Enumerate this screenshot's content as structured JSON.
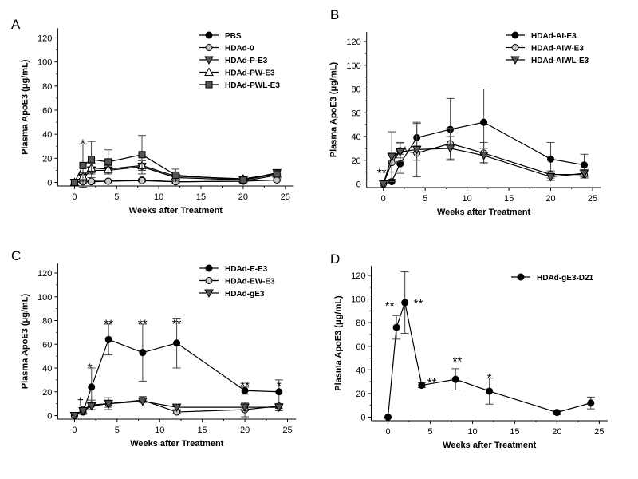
{
  "chart_data": [
    {
      "panel": "A",
      "type": "line",
      "xlabel": "Weeks after Treatment",
      "ylabel": "Plasma ApoE3 (μg/mL)",
      "xlim": [
        -1,
        26
      ],
      "ylim": [
        -3,
        128
      ],
      "xticks": [
        0,
        5,
        10,
        15,
        20,
        25
      ],
      "yticks": [
        0,
        20,
        40,
        60,
        80,
        100,
        120
      ],
      "legend_position": "top-right",
      "series": [
        {
          "name": "PBS",
          "marker": "circle",
          "fill": "#000000",
          "points": [
            [
              0,
              0,
              0
            ],
            [
              1,
              1,
              1
            ],
            [
              2,
              0.5,
              1
            ],
            [
              4,
              1,
              1
            ],
            [
              8,
              2,
              1
            ],
            [
              12,
              0.5,
              1
            ],
            [
              20,
              1,
              1
            ],
            [
              24,
              6,
              1
            ]
          ]
        },
        {
          "name": "HDAd-0",
          "marker": "circle",
          "fill": "#c8c8c8",
          "points": [
            [
              0,
              0,
              0
            ],
            [
              1,
              0.5,
              1
            ],
            [
              2,
              1,
              1
            ],
            [
              4,
              1,
              1
            ],
            [
              8,
              1.5,
              1
            ],
            [
              12,
              0.5,
              1
            ],
            [
              20,
              1,
              1
            ],
            [
              24,
              2,
              1
            ]
          ]
        },
        {
          "name": "HDAd-P-E3",
          "marker": "triangle-down",
          "fill": "#555555",
          "points": [
            [
              0,
              0,
              0
            ],
            [
              1,
              4,
              3
            ],
            [
              2,
              10,
              3
            ],
            [
              4,
              10,
              3
            ],
            [
              8,
              13,
              3
            ],
            [
              12,
              4,
              2
            ],
            [
              20,
              2,
              1
            ],
            [
              24,
              8,
              2
            ]
          ]
        },
        {
          "name": "HDAd-PW-E3",
          "marker": "triangle-up",
          "fill": "#ffffff",
          "points": [
            [
              0,
              0,
              0
            ],
            [
              1,
              5,
              3
            ],
            [
              2,
              12,
              4
            ],
            [
              4,
              11,
              3
            ],
            [
              8,
              14,
              4
            ],
            [
              12,
              5,
              2
            ],
            [
              20,
              3,
              1
            ],
            [
              24,
              7,
              2
            ]
          ]
        },
        {
          "name": "HDAd-PWL-E3",
          "marker": "square",
          "fill": "#555555",
          "points": [
            [
              0,
              0,
              0
            ],
            [
              1,
              14,
              18
            ],
            [
              2,
              19,
              15
            ],
            [
              4,
              17,
              10
            ],
            [
              8,
              23,
              16
            ],
            [
              12,
              6,
              5
            ],
            [
              20,
              2,
              1
            ],
            [
              24,
              7,
              2
            ]
          ]
        }
      ],
      "annotations": [
        {
          "x": 1,
          "y": 33,
          "text": "*"
        }
      ]
    },
    {
      "panel": "B",
      "type": "line",
      "xlabel": "Weeks after Treatment",
      "ylabel": "Plasma ApoE3 (μg/mL)",
      "xlim": [
        -1,
        26
      ],
      "ylim": [
        -3,
        128
      ],
      "xticks": [
        0,
        5,
        10,
        15,
        20,
        25
      ],
      "yticks": [
        0,
        20,
        40,
        60,
        80,
        100,
        120
      ],
      "legend_position": "top-right",
      "series": [
        {
          "name": "HDAd-AI-E3",
          "marker": "circle",
          "fill": "#000000",
          "points": [
            [
              0,
              0,
              0
            ],
            [
              1,
              2,
              2
            ],
            [
              2,
              17,
              8
            ],
            [
              4,
              39,
              12
            ],
            [
              8,
              46,
              26
            ],
            [
              12,
              52,
              28
            ],
            [
              20,
              21,
              14
            ],
            [
              24,
              16,
              9
            ]
          ]
        },
        {
          "name": "HDAd-AIW-E3",
          "marker": "circle",
          "fill": "#c8c8c8",
          "points": [
            [
              0,
              0,
              0
            ],
            [
              1,
              18,
              8
            ],
            [
              2,
              28,
              6
            ],
            [
              4,
              26,
              6
            ],
            [
              8,
              34,
              13
            ],
            [
              12,
              26,
              9
            ],
            [
              20,
              8,
              3
            ],
            [
              24,
              8,
              3
            ]
          ]
        },
        {
          "name": "HDAd-AIWL-E3",
          "marker": "triangle-down",
          "fill": "#555555",
          "points": [
            [
              0,
              0,
              0
            ],
            [
              1,
              23,
              21
            ],
            [
              2,
              27,
              8
            ],
            [
              4,
              29,
              23
            ],
            [
              8,
              30,
              10
            ],
            [
              12,
              24,
              6
            ],
            [
              20,
              6,
              3
            ],
            [
              24,
              9,
              3
            ]
          ]
        }
      ],
      "annotations": [
        {
          "x": -0.2,
          "y": 10,
          "text": "**"
        },
        {
          "x": 1.5,
          "y": 23,
          "text": "*"
        },
        {
          "x": 2.6,
          "y": 29,
          "text": "*"
        }
      ]
    },
    {
      "panel": "C",
      "type": "line",
      "xlabel": "Weeks after Treatment",
      "ylabel": "Plasma ApoE3 (μg/mL)",
      "xlim": [
        -1,
        26
      ],
      "ylim": [
        -3,
        128
      ],
      "xticks": [
        0,
        5,
        10,
        15,
        20,
        25
      ],
      "yticks": [
        0,
        20,
        40,
        60,
        80,
        100,
        120
      ],
      "legend_position": "top-right",
      "series": [
        {
          "name": "HDAd-E-E3",
          "marker": "circle",
          "fill": "#000000",
          "points": [
            [
              0,
              0,
              0
            ],
            [
              1,
              3,
              2
            ],
            [
              2,
              24,
              16
            ],
            [
              4,
              64,
              13
            ],
            [
              8,
              53,
              24
            ],
            [
              12,
              61,
              21
            ],
            [
              20,
              21,
              3
            ],
            [
              24,
              20,
              10
            ]
          ]
        },
        {
          "name": "HDAd-EW-E3",
          "marker": "circle",
          "fill": "#c8c8c8",
          "points": [
            [
              0,
              0,
              0
            ],
            [
              1,
              5,
              3
            ],
            [
              2,
              9,
              4
            ],
            [
              4,
              10,
              3
            ],
            [
              8,
              13,
              2
            ],
            [
              12,
              3,
              1
            ],
            [
              20,
              5,
              6
            ],
            [
              24,
              8,
              2
            ]
          ]
        },
        {
          "name": "HDAd-gE3",
          "marker": "triangle-down",
          "fill": "#555555",
          "points": [
            [
              0,
              0,
              0
            ],
            [
              1,
              4,
              2
            ],
            [
              2,
              8,
              3
            ],
            [
              4,
              10,
              5
            ],
            [
              8,
              12,
              4
            ],
            [
              12,
              7,
              2
            ],
            [
              20,
              7,
              3
            ],
            [
              24,
              7,
              3
            ]
          ]
        }
      ],
      "annotations": [
        {
          "x": 0.7,
          "y": 12,
          "text": "†"
        },
        {
          "x": 1.8,
          "y": 41,
          "text": "*"
        },
        {
          "x": 4,
          "y": 78,
          "text": "**"
        },
        {
          "x": 8,
          "y": 78,
          "text": "**"
        },
        {
          "x": 12,
          "y": 78,
          "text": "**"
        },
        {
          "x": 20,
          "y": 26,
          "text": "**"
        },
        {
          "x": 24,
          "y": 26,
          "text": "*"
        }
      ]
    },
    {
      "panel": "D",
      "type": "line",
      "xlabel": "Weeks after Treatment",
      "ylabel": "Plasma ApoE3 (μg/mL)",
      "xlim": [
        -1,
        26
      ],
      "ylim": [
        -3,
        128
      ],
      "xticks": [
        0,
        5,
        10,
        15,
        20,
        25
      ],
      "yticks": [
        0,
        20,
        40,
        60,
        80,
        100,
        120
      ],
      "legend_position": "top-right",
      "series": [
        {
          "name": "HDAd-gE3-D21",
          "marker": "circle",
          "fill": "#000000",
          "points": [
            [
              0,
              0,
              0
            ],
            [
              1,
              76,
              10
            ],
            [
              2,
              97,
              26
            ],
            [
              4,
              27,
              2
            ],
            [
              8,
              32,
              9
            ],
            [
              12,
              22,
              11
            ],
            [
              20,
              4,
              2
            ],
            [
              24,
              12,
              5
            ]
          ]
        }
      ],
      "annotations": [
        {
          "x": 0.2,
          "y": 95,
          "text": "**"
        },
        {
          "x": 3.6,
          "y": 97,
          "text": "**"
        },
        {
          "x": 5.2,
          "y": 30,
          "text": "**"
        },
        {
          "x": 8.2,
          "y": 48,
          "text": "**"
        },
        {
          "x": 12,
          "y": 34,
          "text": "*"
        }
      ]
    }
  ]
}
